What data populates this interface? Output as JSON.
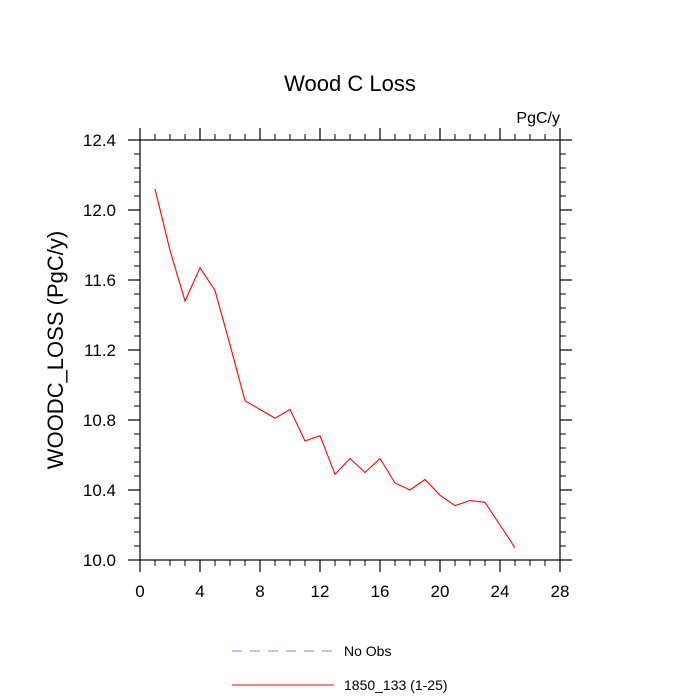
{
  "chart_data": {
    "type": "line",
    "title": "Wood C Loss",
    "units_label": "PgC/y",
    "ylabel": "WOODC_LOSS  (PgC/y)",
    "xlabel": "",
    "xlim": [
      0,
      28
    ],
    "ylim": [
      10.0,
      12.4
    ],
    "x_ticks": [
      0,
      4,
      8,
      12,
      16,
      20,
      24,
      28
    ],
    "x_tick_labels": [
      "0",
      "4",
      "8",
      "12",
      "16",
      "20",
      "24",
      "28"
    ],
    "y_ticks": [
      10.0,
      10.4,
      10.8,
      11.2,
      11.6,
      12.0,
      12.4
    ],
    "y_tick_labels": [
      "10.0",
      "10.4",
      "10.8",
      "11.2",
      "11.6",
      "12.0",
      "12.4"
    ],
    "grid": false,
    "legend_position": "bottom",
    "series": [
      {
        "name": "1850_133 (1-25)",
        "color": "#ff0000",
        "style": "solid",
        "x": [
          1,
          2,
          3,
          4,
          5,
          6,
          7,
          8,
          9,
          10,
          11,
          12,
          13,
          14,
          15,
          16,
          17,
          18,
          19,
          20,
          21,
          22,
          23,
          24,
          25
        ],
        "values": [
          12.12,
          11.77,
          11.48,
          11.67,
          11.54,
          11.23,
          10.91,
          10.86,
          10.81,
          10.86,
          10.68,
          10.71,
          10.49,
          10.58,
          10.5,
          10.58,
          10.44,
          10.4,
          10.46,
          10.37,
          10.31,
          10.34,
          10.33,
          10.2,
          10.07
        ]
      }
    ],
    "legend": [
      {
        "label": "No Obs",
        "color": "#8080ff",
        "style": "dashed"
      },
      {
        "label": "1850_133 (1-25)",
        "color": "#ff0000",
        "style": "solid"
      }
    ]
  }
}
